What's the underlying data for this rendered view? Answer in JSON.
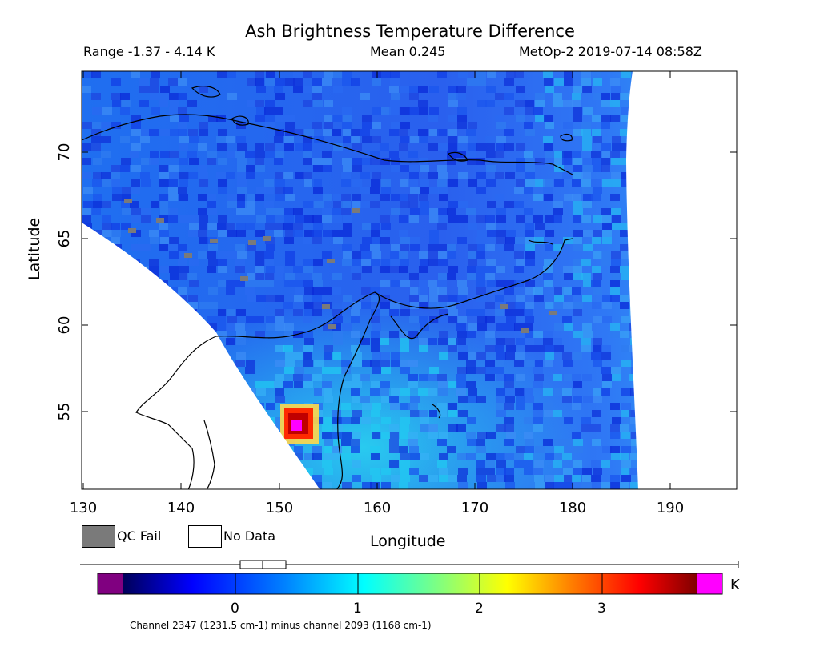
{
  "header": {
    "title": "Ash Brightness Temperature Difference",
    "range": "Range -1.37 - 4.14 K",
    "mean": "Mean 0.245",
    "satellite_time": "MetOp-2 2019-07-14 08:58Z"
  },
  "axes": {
    "xlabel": "Longitude",
    "ylabel": "Latitude",
    "x_ticks": [
      "130",
      "140",
      "150",
      "160",
      "170",
      "180",
      "190"
    ],
    "y_ticks": [
      "55",
      "60",
      "65",
      "70"
    ],
    "xlim": [
      130,
      197
    ],
    "ylim": [
      50.6,
      75
    ]
  },
  "legend": {
    "qc_fail": "QC Fail",
    "no_data": "No Data",
    "qc_color": "#7a7a7a",
    "no_data_color": "#ffffff"
  },
  "colorbar": {
    "unit": "K",
    "caption": "Channel 2347 (1231.5 cm-1) minus channel 2093 (1168 cm-1)",
    "ticks": [
      "0",
      "1",
      "2",
      "3"
    ],
    "tick_values": [
      0,
      1,
      2,
      3
    ],
    "low_clip_color": "#800080",
    "high_clip_color": "#ff00ff",
    "colors": [
      "#00005a",
      "#0000ff",
      "#0080ff",
      "#00ffff",
      "#80ff80",
      "#ffff00",
      "#ff8000",
      "#ff0000",
      "#800000"
    ]
  },
  "map_data": {
    "field": "ash brightness temperature difference",
    "min": -1.37,
    "max": 4.14,
    "mean": 0.245,
    "hotspot": {
      "lon": 151.8,
      "lat": 54.3,
      "value": 4.14
    },
    "no_data_regions": [
      "west of swath edge (southwest)",
      "east of ~186E"
    ]
  }
}
